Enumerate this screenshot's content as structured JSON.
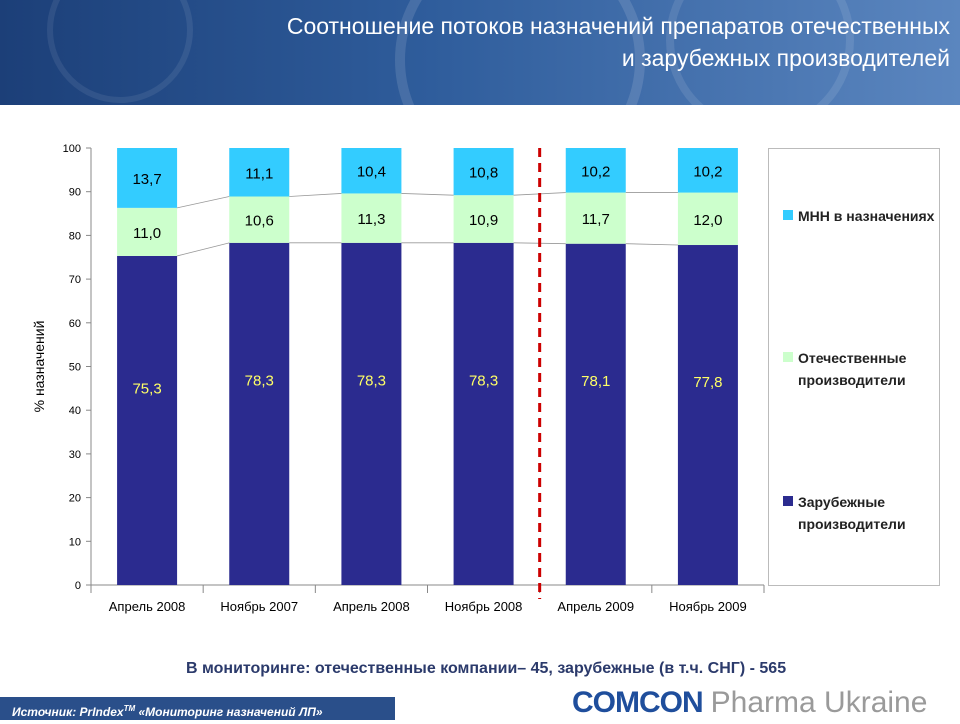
{
  "header": {
    "title_line1": "Соотношение потоков назначений препаратов отечественных",
    "title_line2": "и зарубежных производителей"
  },
  "chart_data": {
    "type": "bar",
    "stacked": true,
    "ylabel": "% назначений",
    "ylim": [
      0,
      100
    ],
    "yticks": [
      "0",
      "10",
      "20",
      "30",
      "40",
      "50",
      "60",
      "70",
      "80",
      "90",
      "100"
    ],
    "categories": [
      "Апрель 2008",
      "Ноябрь 2007",
      "Апрель 2008",
      "Ноябрь 2008",
      "Апрель 2009",
      "Ноябрь 2009"
    ],
    "series": [
      {
        "name": "Зарубежные производители",
        "color": "#2b2b8f",
        "label_color": "#ffff66",
        "values": [
          75.3,
          78.3,
          78.3,
          78.3,
          78.1,
          77.8
        ],
        "labels": [
          "75,3",
          "78,3",
          "78,3",
          "78,3",
          "78,1",
          "77,8"
        ]
      },
      {
        "name": "Отечественные производители",
        "color": "#ccffcc",
        "label_color": "#000000",
        "values": [
          11.0,
          10.6,
          11.3,
          10.9,
          11.7,
          12.0
        ],
        "labels": [
          "11,0",
          "10,6",
          "11,3",
          "10,9",
          "11,7",
          "12,0"
        ]
      },
      {
        "name": "МНН в назначениях",
        "color": "#33ccff",
        "label_color": "#000000",
        "values": [
          13.7,
          11.1,
          10.4,
          10.8,
          10.2,
          10.2
        ],
        "labels": [
          "13,7",
          "11,1",
          "10,4",
          "10,8",
          "10,2",
          "10,2"
        ]
      }
    ],
    "legend": [
      "МНН в назначениях",
      "Отечественные производители",
      "Зарубежные производители"
    ],
    "legend_position": "right",
    "divider": {
      "between_categories": [
        3,
        4
      ],
      "color": "#cc0000",
      "style": "dashed"
    },
    "grid": false
  },
  "note": "В мониторинге: отечественные компании– 45, зарубежные (в т.ч. СНГ) - 565",
  "footer": {
    "source_prefix": "Источник: PrIndex",
    "source_tm": "TM",
    "source_suffix": " «Мониторинг назначений ЛП»",
    "logo_brand": "COMCON",
    "logo_sub": "Pharma Ukraine"
  }
}
